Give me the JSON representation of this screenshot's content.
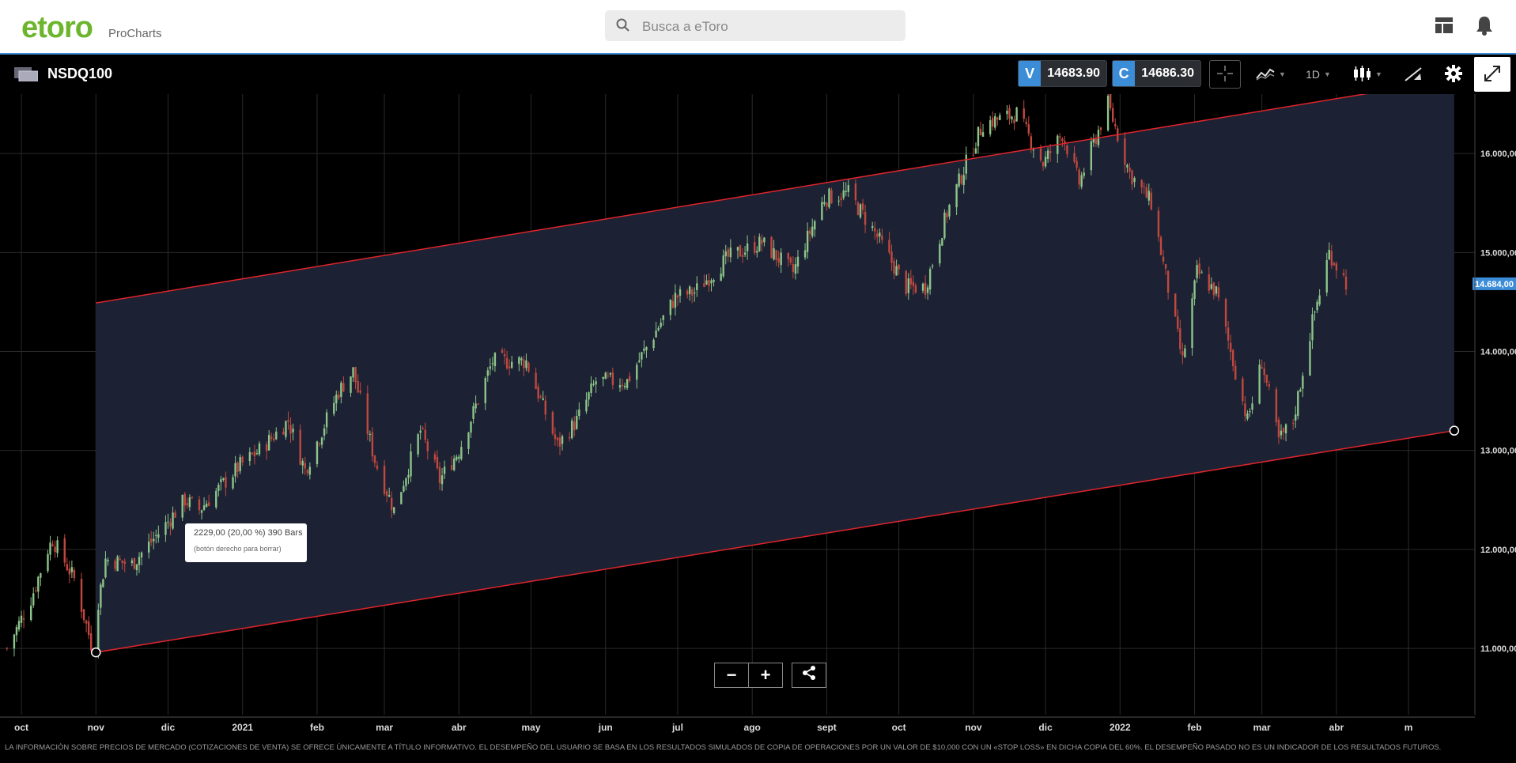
{
  "header": {
    "logo_text": "etoro",
    "logo_sub": "ProCharts",
    "search_placeholder": "Busca a eToro"
  },
  "toolbar": {
    "symbol": "NSDQ100",
    "sell_letter": "V",
    "sell_price": "14683.90",
    "buy_letter": "C",
    "buy_price": "14686.30",
    "timeframe": "1D"
  },
  "tooltip": {
    "main": "2229,00 (20,00 %) 390 Bars",
    "sub": "(botón derecho para borrar)"
  },
  "zoom": {
    "minus": "−",
    "plus": "+"
  },
  "disclaimer": "LA INFORMACIÓN SOBRE PRECIOS DE MERCADO (COTIZACIONES DE VENTA) SE OFRECE ÚNICAMENTE A TÍTULO INFORMATIVO. EL DESEMPEÑO DEL USUARIO SE BASA EN LOS RESULTADOS SIMULADOS DE COPIA DE OPERACIONES POR UN VALOR DE $10,000 CON UN «STOP LOSS» EN DICHA COPIA DEL 60%. EL DESEMPEÑO PASADO NO ES UN INDICADOR DE LOS RESULTADOS FUTUROS.",
  "colors": {
    "up": "#8dc58a",
    "down": "#c0483f",
    "channel_line": "#e0242b",
    "channel_fill": "#1c2233",
    "accent": "#3c8dd8",
    "brand": "#6cb52d"
  },
  "chart_data": {
    "type": "candlestick",
    "title": "NSDQ100",
    "y_ticks": [
      "16.000,00",
      "15.000,00",
      "14.000,00",
      "13.000,00",
      "12.000,00",
      "11.000,00"
    ],
    "x_ticks": [
      "oct",
      "nov",
      "dic",
      "2021",
      "feb",
      "mar",
      "abr",
      "may",
      "jun",
      "jul",
      "ago",
      "sept",
      "oct",
      "nov",
      "dic",
      "2022",
      "feb",
      "mar",
      "abr",
      "m"
    ],
    "current_price_label": "14.684,00",
    "ylim": [
      10330,
      16600
    ],
    "grid": true,
    "channel": {
      "lower": [
        {
          "date": "2020-11-01",
          "price": 10960
        },
        {
          "date": "2022-05-20",
          "price": 13200
        }
      ],
      "upper": [
        {
          "date": "2020-11-01",
          "price": 14490
        },
        {
          "date": "2022-04-25",
          "price": 16650
        }
      ],
      "handles": [
        {
          "date": "2020-11-01",
          "price": 10960
        },
        {
          "date": "2022-05-20",
          "price": 13200
        }
      ]
    },
    "close_path": [
      [
        "2020-09-25",
        11000
      ],
      [
        "2020-10-05",
        11500
      ],
      [
        "2020-10-12",
        12000
      ],
      [
        "2020-10-14",
        12100
      ],
      [
        "2020-10-23",
        11700
      ],
      [
        "2020-10-30",
        11050
      ],
      [
        "2020-11-05",
        11900
      ],
      [
        "2020-11-16",
        11850
      ],
      [
        "2020-11-30",
        12250
      ],
      [
        "2020-12-08",
        12500
      ],
      [
        "2020-12-14",
        12400
      ],
      [
        "2020-12-31",
        12850
      ],
      [
        "2021-01-08",
        13000
      ],
      [
        "2021-01-20",
        13300
      ],
      [
        "2021-01-27",
        12800
      ],
      [
        "2021-02-10",
        13600
      ],
      [
        "2021-02-16",
        13800
      ],
      [
        "2021-02-25",
        12900
      ],
      [
        "2021-03-05",
        12400
      ],
      [
        "2021-03-16",
        13200
      ],
      [
        "2021-03-24",
        12700
      ],
      [
        "2021-04-01",
        13000
      ],
      [
        "2021-04-15",
        13900
      ],
      [
        "2021-04-29",
        13900
      ],
      [
        "2021-05-12",
        13050
      ],
      [
        "2021-05-20",
        13300
      ],
      [
        "2021-05-28",
        13700
      ],
      [
        "2021-06-10",
        13700
      ],
      [
        "2021-06-30",
        14550
      ],
      [
        "2021-07-08",
        14600
      ],
      [
        "2021-07-16",
        14800
      ],
      [
        "2021-07-22",
        14950
      ],
      [
        "2021-08-05",
        15100
      ],
      [
        "2021-08-18",
        14800
      ],
      [
        "2021-08-31",
        15550
      ],
      [
        "2021-09-10",
        15600
      ],
      [
        "2021-09-21",
        15200
      ],
      [
        "2021-10-04",
        14650
      ],
      [
        "2021-10-12",
        14650
      ],
      [
        "2021-10-21",
        15400
      ],
      [
        "2021-10-29",
        15900
      ],
      [
        "2021-11-05",
        16300
      ],
      [
        "2021-11-19",
        16400
      ],
      [
        "2021-11-30",
        15900
      ],
      [
        "2021-12-08",
        16200
      ],
      [
        "2021-12-15",
        15700
      ],
      [
        "2021-12-27",
        16500
      ],
      [
        "2022-01-05",
        15800
      ],
      [
        "2022-01-14",
        15500
      ],
      [
        "2022-01-27",
        13900
      ],
      [
        "2022-02-02",
        14800
      ],
      [
        "2022-02-10",
        14600
      ],
      [
        "2022-02-23",
        13300
      ],
      [
        "2022-03-01",
        13900
      ],
      [
        "2022-03-08",
        13100
      ],
      [
        "2022-03-14",
        13300
      ],
      [
        "2022-03-22",
        14300
      ],
      [
        "2022-03-29",
        15000
      ],
      [
        "2022-04-05",
        14700
      ]
    ]
  }
}
